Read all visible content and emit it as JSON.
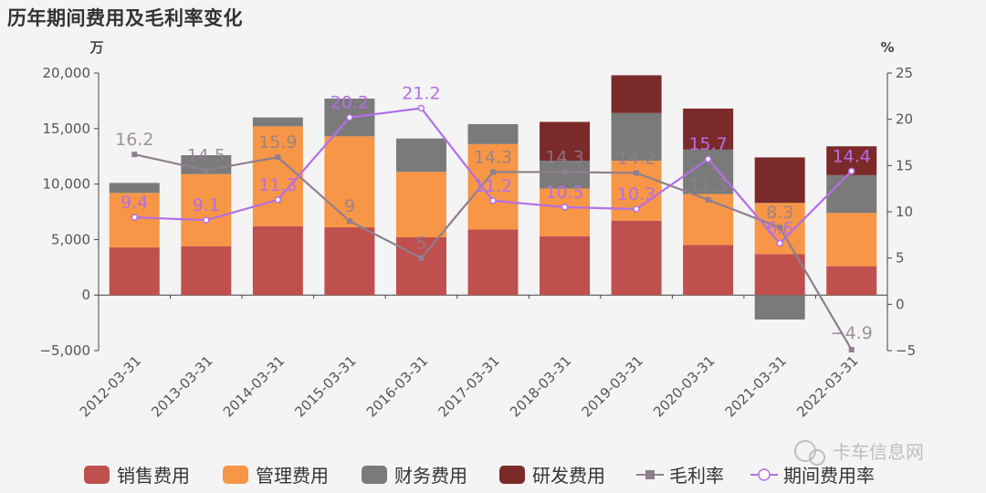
{
  "title": "历年期间费用及毛利率变化",
  "watermark": "卡车信息网",
  "colors": {
    "sales": "#c0504d",
    "admin": "#f79646",
    "finance": "#7a7a7a",
    "rnd": "#7b2a2a",
    "gross": "#8e7f8e",
    "period": "#b36fe6"
  },
  "chart_data": {
    "type": "bar",
    "stacked": true,
    "title": "历年期间费用及毛利率变化",
    "categories": [
      "2012-03-31",
      "2013-03-31",
      "2014-03-31",
      "2015-03-31",
      "2016-03-31",
      "2017-03-31",
      "2018-03-31",
      "2019-03-31",
      "2020-03-31",
      "2021-03-31",
      "2022-03-31"
    ],
    "ylabel_left": "万",
    "ylabel_right": "%",
    "ylim_left": [
      -5000,
      20000
    ],
    "yticks_left": [
      "20,000",
      "15,000",
      "10,000",
      "5,000",
      "0",
      "−5,000"
    ],
    "ylim_right": [
      -5,
      25
    ],
    "yticks_right": [
      "25",
      "20",
      "15",
      "10",
      "5",
      "0",
      "−5"
    ],
    "legend_position": "bottom",
    "series": [
      {
        "name": "销售费用",
        "type": "bar",
        "color": "#c0504d",
        "values": [
          4300,
          4400,
          6200,
          6100,
          5200,
          5900,
          5300,
          6700,
          4500,
          3700,
          2600
        ]
      },
      {
        "name": "管理费用",
        "type": "bar",
        "color": "#f79646",
        "values": [
          4900,
          6500,
          9000,
          8200,
          5900,
          7700,
          4300,
          5400,
          4600,
          4600,
          4800
        ]
      },
      {
        "name": "财务费用",
        "type": "bar",
        "color": "#7a7a7a",
        "values": [
          900,
          1700,
          800,
          3400,
          3000,
          1800,
          2500,
          4300,
          4000,
          -2200,
          3400
        ]
      },
      {
        "name": "研发费用",
        "type": "bar",
        "color": "#7b2a2a",
        "values": [
          0,
          0,
          0,
          0,
          0,
          0,
          3500,
          3400,
          3700,
          4100,
          2600
        ]
      },
      {
        "name": "毛利率",
        "type": "line",
        "axis": "right",
        "color": "#8e7f8e",
        "marker": "square",
        "values": [
          16.2,
          14.5,
          15.9,
          9,
          5,
          14.3,
          14.3,
          14.2,
          11.3,
          8.3,
          -4.9
        ],
        "labels": [
          "16.2",
          "14.5",
          "15.9",
          "9",
          "5",
          "14.3",
          "14.3",
          "14.2",
          "11.3",
          "8.3",
          "−4.9"
        ]
      },
      {
        "name": "期间费用率",
        "type": "line",
        "axis": "right",
        "color": "#b36fe6",
        "marker": "circle",
        "values": [
          9.4,
          9.1,
          11.3,
          20.2,
          21.2,
          11.2,
          10.5,
          10.3,
          15.7,
          6.6,
          14.4
        ],
        "labels": [
          "9.4",
          "9.1",
          "11.3",
          "20.2",
          "21.2",
          "11.2",
          "10.5",
          "10.3",
          "15.7",
          "6.6",
          "14.4"
        ]
      }
    ]
  }
}
